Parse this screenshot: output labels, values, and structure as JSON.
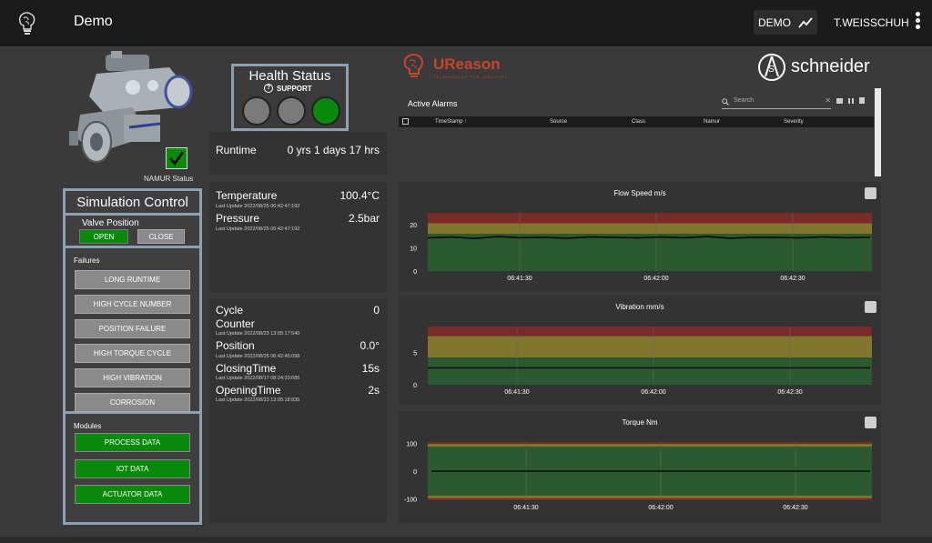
{
  "header": {
    "title": "Demo",
    "mode_label": "DEMO",
    "user": "T.WEISSCHUH"
  },
  "device": {
    "namur_label": "NAMUR Status"
  },
  "simulation": {
    "title": "Simulation Control",
    "valve_position_label": "Valve Position",
    "open_label": "OPEN",
    "close_label": "CLOSE",
    "failures_label": "Failures",
    "failures": [
      "LONG RUNTIME",
      "HIGH CYCLE NUMBER",
      "POSITION FAILURE",
      "HIGH TORQUE CYCLE",
      "HIGH VIBRATION",
      "CORROSION"
    ],
    "modules_label": "Modules",
    "modules": [
      "PROCESS DATA",
      "IOT DATA",
      "ACTUATOR DATA"
    ]
  },
  "health": {
    "title": "Health Status",
    "support_label": "SUPPORT",
    "lamps": [
      "#7a7a7a",
      "#7a7a7a",
      "#0a8a0a"
    ]
  },
  "runtime": {
    "label": "Runtime",
    "value": "0 yrs 1 days 17 hrs"
  },
  "process": {
    "temperature_label": "Temperature",
    "temperature_value": "100.4°C",
    "temperature_update": "Last Update 2022/08/25 06:42:47:192",
    "pressure_label": "Pressure",
    "pressure_value": "2.5bar",
    "pressure_update": "Last Update 2022/08/25 06:42:47:192"
  },
  "counters": {
    "cycle_label": "Cycle",
    "cycle_value": "0",
    "counter_label": "Counter",
    "counter_update": "Last Update 2022/08/23 13:05:17:540",
    "position_label": "Position",
    "position_value": "0.0°",
    "position_update": "Last Update 2022/08/25 06:42:46:098",
    "closing_label": "ClosingTime",
    "closing_value": "15s",
    "closing_update": "Last Update 2022/08/17 08:24:33:685",
    "opening_label": "OpeningTime",
    "opening_value": "2s",
    "opening_update": "Last Update 2022/08/23 13:05:18:835"
  },
  "brands": {
    "ureason_u": "U",
    "ureason_rest": "Reason",
    "ureason_tagline": "TECHNOLOGY FOR INDUSTRY",
    "schneider": "schneider"
  },
  "alarms": {
    "title": "Active Alarms",
    "search_placeholder": "Search",
    "columns": [
      "TimeStamp ↑",
      "Source",
      "Class",
      "Namur",
      "Severity"
    ]
  },
  "colors": {
    "zone_red": "#7b2a2a",
    "zone_yellow": "#80762c",
    "zone_green": "#2c5a30",
    "button_green": "#0a8a0a"
  },
  "chart_data": [
    {
      "type": "line",
      "title": "Flow Speed m/s",
      "x_ticks": [
        "06:41:30",
        "06:42:00",
        "06:42:30"
      ],
      "y_ticks": [
        0,
        10,
        20
      ],
      "ylim": [
        0,
        25
      ],
      "series": [
        {
          "values": [
            14.2,
            14.6,
            14.0,
            14.8,
            14.3,
            14.5,
            14.1,
            14.7,
            14.4,
            14.2,
            14.6,
            14.3,
            14.8,
            14.1,
            14.5,
            14.4,
            14.2,
            14.7,
            14.3,
            14.5
          ]
        }
      ]
    },
    {
      "type": "line",
      "title": "Vibration mm/s",
      "x_ticks": [
        "06:41:30",
        "06:42:00",
        "06:42:30"
      ],
      "y_ticks": [
        0,
        5
      ],
      "ylim": [
        0,
        9
      ],
      "series": [
        {
          "values": [
            2.6,
            2.6,
            2.6,
            2.6,
            2.6,
            2.6,
            2.6,
            2.6,
            2.6,
            2.6
          ]
        }
      ]
    },
    {
      "type": "line",
      "title": "Torque Nm",
      "x_ticks": [
        "06:41:30",
        "06:42:00",
        "06:42:30"
      ],
      "y_ticks": [
        100,
        0,
        -100
      ],
      "ylim": [
        -105,
        105
      ],
      "series": [
        {
          "values": [
            0,
            0,
            0,
            0,
            0,
            0,
            0,
            0,
            0,
            0
          ]
        }
      ]
    }
  ]
}
